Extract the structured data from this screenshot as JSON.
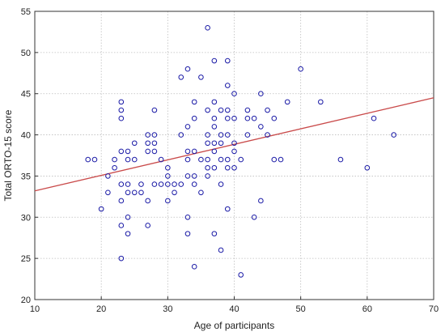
{
  "chart_data": {
    "type": "scatter",
    "title": "",
    "xlabel": "Age of participants",
    "ylabel": "Total ORTO-15 score",
    "xlim": [
      10,
      70
    ],
    "ylim": [
      20,
      55
    ],
    "xticks": [
      10,
      20,
      30,
      40,
      50,
      60,
      70
    ],
    "yticks": [
      20,
      25,
      30,
      35,
      40,
      45,
      50,
      55
    ],
    "grid": true,
    "marker_color": "#1a1aa6",
    "trend_color": "#c94a4a",
    "trendline": {
      "x": [
        10,
        70
      ],
      "y": [
        33.2,
        44.5
      ]
    },
    "points": [
      [
        18,
        37
      ],
      [
        19,
        37
      ],
      [
        21,
        35
      ],
      [
        21,
        33
      ],
      [
        22,
        37
      ],
      [
        22,
        36
      ],
      [
        20,
        31
      ],
      [
        23,
        44
      ],
      [
        23,
        43
      ],
      [
        23,
        42
      ],
      [
        23,
        38
      ],
      [
        23,
        34
      ],
      [
        23,
        32
      ],
      [
        23,
        29
      ],
      [
        23,
        25
      ],
      [
        24,
        38
      ],
      [
        24,
        37
      ],
      [
        24,
        34
      ],
      [
        24,
        33
      ],
      [
        24,
        30
      ],
      [
        24,
        28
      ],
      [
        25,
        39
      ],
      [
        25,
        37
      ],
      [
        25,
        33
      ],
      [
        26,
        34
      ],
      [
        26,
        33
      ],
      [
        27,
        40
      ],
      [
        27,
        39
      ],
      [
        27,
        38
      ],
      [
        27,
        32
      ],
      [
        27,
        29
      ],
      [
        28,
        43
      ],
      [
        28,
        40
      ],
      [
        28,
        39
      ],
      [
        28,
        38
      ],
      [
        28,
        34
      ],
      [
        29,
        37
      ],
      [
        29,
        34
      ],
      [
        30,
        36
      ],
      [
        30,
        35
      ],
      [
        30,
        34
      ],
      [
        30,
        32
      ],
      [
        31,
        34
      ],
      [
        31,
        33
      ],
      [
        32,
        47
      ],
      [
        32,
        40
      ],
      [
        32,
        34
      ],
      [
        33,
        48
      ],
      [
        33,
        41
      ],
      [
        33,
        38
      ],
      [
        33,
        37
      ],
      [
        33,
        35
      ],
      [
        33,
        30
      ],
      [
        33,
        28
      ],
      [
        34,
        44
      ],
      [
        34,
        42
      ],
      [
        34,
        38
      ],
      [
        34,
        35
      ],
      [
        34,
        34
      ],
      [
        34,
        24
      ],
      [
        35,
        47
      ],
      [
        35,
        37
      ],
      [
        35,
        33
      ],
      [
        36,
        53
      ],
      [
        36,
        43
      ],
      [
        36,
        40
      ],
      [
        36,
        39
      ],
      [
        36,
        37
      ],
      [
        36,
        36
      ],
      [
        36,
        35
      ],
      [
        37,
        49
      ],
      [
        37,
        44
      ],
      [
        37,
        42
      ],
      [
        37,
        41
      ],
      [
        37,
        39
      ],
      [
        37,
        38
      ],
      [
        37,
        36
      ],
      [
        37,
        28
      ],
      [
        38,
        43
      ],
      [
        38,
        40
      ],
      [
        38,
        39
      ],
      [
        38,
        37
      ],
      [
        38,
        34
      ],
      [
        38,
        26
      ],
      [
        39,
        49
      ],
      [
        39,
        46
      ],
      [
        39,
        43
      ],
      [
        39,
        42
      ],
      [
        39,
        40
      ],
      [
        39,
        37
      ],
      [
        39,
        36
      ],
      [
        39,
        31
      ],
      [
        40,
        45
      ],
      [
        40,
        42
      ],
      [
        40,
        39
      ],
      [
        40,
        38
      ],
      [
        40,
        36
      ],
      [
        41,
        37
      ],
      [
        41,
        23
      ],
      [
        42,
        43
      ],
      [
        42,
        42
      ],
      [
        42,
        40
      ],
      [
        43,
        42
      ],
      [
        43,
        30
      ],
      [
        44,
        45
      ],
      [
        44,
        41
      ],
      [
        44,
        32
      ],
      [
        45,
        43
      ],
      [
        45,
        40
      ],
      [
        46,
        42
      ],
      [
        46,
        37
      ],
      [
        47,
        37
      ],
      [
        48,
        44
      ],
      [
        50,
        48
      ],
      [
        53,
        44
      ],
      [
        56,
        37
      ],
      [
        60,
        36
      ],
      [
        61,
        42
      ],
      [
        64,
        40
      ]
    ]
  }
}
